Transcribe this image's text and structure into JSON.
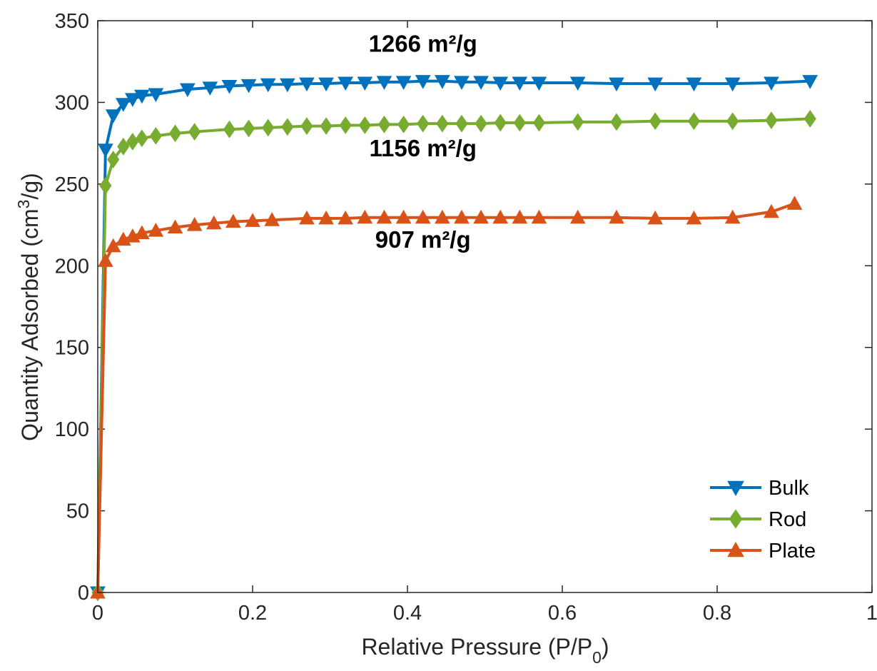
{
  "chart_data": {
    "type": "line",
    "xlabel": "Relative Pressure (P/P",
    "xlabel_subscript": "0",
    "xlabel_suffix": ")",
    "ylabel": "Quantity Adsorbed (cm",
    "ylabel_superscript": "3",
    "ylabel_suffix": "/g)",
    "xlim": [
      0,
      1
    ],
    "ylim": [
      0,
      350
    ],
    "xticks": [
      0,
      0.2,
      0.4,
      0.6,
      0.8,
      1
    ],
    "xtick_labels": [
      "0",
      "0.2",
      "0.4",
      "0.6",
      "0.8",
      "1"
    ],
    "yticks": [
      0,
      50,
      100,
      150,
      200,
      250,
      300,
      350
    ],
    "ytick_labels": [
      "0",
      "50",
      "100",
      "150",
      "200",
      "250",
      "300",
      "350"
    ],
    "grid": false,
    "legend_position": "bottom-right",
    "annotations": [
      {
        "text": "1266 m²/g",
        "x": 0.42,
        "y": 331
      },
      {
        "text": "1156 m²/g",
        "x": 0.42,
        "y": 267
      },
      {
        "text": "907 m²/g",
        "x": 0.42,
        "y": 211
      }
    ],
    "series": [
      {
        "name": "Bulk",
        "color": "#0072BD",
        "marker": "triangle-down",
        "x": [
          0,
          0.01,
          0.02,
          0.033,
          0.045,
          0.057,
          0.075,
          0.116,
          0.145,
          0.17,
          0.195,
          0.22,
          0.245,
          0.27,
          0.295,
          0.32,
          0.345,
          0.37,
          0.395,
          0.42,
          0.445,
          0.47,
          0.495,
          0.52,
          0.545,
          0.57,
          0.62,
          0.67,
          0.72,
          0.77,
          0.82,
          0.87,
          0.92
        ],
        "y": [
          0,
          271,
          292,
          299,
          302,
          304,
          305,
          308,
          309,
          310,
          310.5,
          311,
          311,
          311.5,
          311.5,
          312,
          312,
          312.5,
          312.5,
          313,
          313,
          312.5,
          312.5,
          312,
          312,
          312,
          312,
          311.5,
          311.5,
          311.5,
          311.5,
          312,
          313
        ]
      },
      {
        "name": "Rod",
        "color": "#77AC30",
        "marker": "diamond",
        "x": [
          0,
          0.01,
          0.02,
          0.033,
          0.045,
          0.057,
          0.075,
          0.1,
          0.125,
          0.17,
          0.195,
          0.22,
          0.245,
          0.27,
          0.295,
          0.32,
          0.345,
          0.37,
          0.395,
          0.42,
          0.445,
          0.47,
          0.495,
          0.52,
          0.545,
          0.57,
          0.62,
          0.67,
          0.72,
          0.77,
          0.82,
          0.87,
          0.92
        ],
        "y": [
          0,
          249,
          265,
          273,
          276,
          278,
          279.5,
          281,
          282,
          283.5,
          284,
          284.5,
          285,
          285.5,
          285.5,
          286,
          286,
          286.5,
          286.5,
          287,
          287,
          287,
          287,
          287.5,
          287.5,
          287.5,
          288,
          288,
          288.5,
          288.5,
          288.5,
          289,
          290
        ]
      },
      {
        "name": "Plate",
        "color": "#D95319",
        "marker": "triangle-up",
        "x": [
          0,
          0.01,
          0.02,
          0.033,
          0.045,
          0.057,
          0.075,
          0.1,
          0.125,
          0.15,
          0.175,
          0.2,
          0.225,
          0.27,
          0.295,
          0.32,
          0.345,
          0.37,
          0.395,
          0.42,
          0.445,
          0.47,
          0.495,
          0.52,
          0.545,
          0.57,
          0.62,
          0.67,
          0.72,
          0.77,
          0.82,
          0.87,
          0.9
        ],
        "y": [
          0,
          203,
          212,
          216,
          218,
          220,
          221.5,
          223.5,
          225,
          226,
          227,
          227.5,
          228,
          229,
          229,
          229,
          229.5,
          229.5,
          229.5,
          229.5,
          229.5,
          229.5,
          229.5,
          229.5,
          229.5,
          229.5,
          229.5,
          229.5,
          229,
          229,
          229.5,
          233,
          238
        ]
      }
    ]
  }
}
